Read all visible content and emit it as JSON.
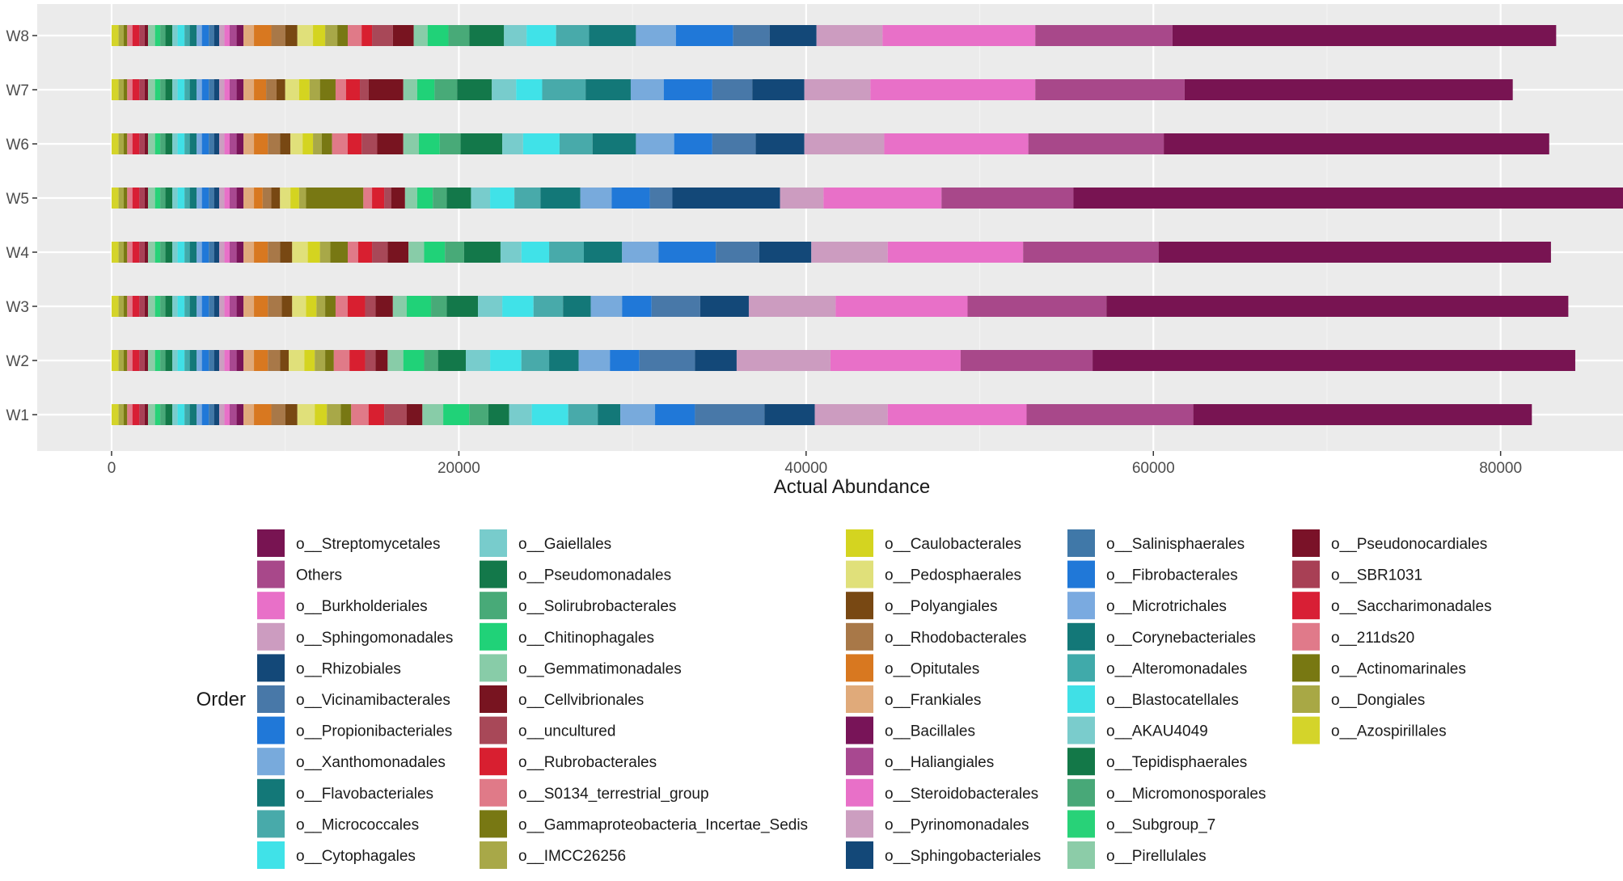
{
  "chart_data": {
    "type": "bar",
    "orientation": "horizontal",
    "stacked": true,
    "categories": [
      "W1",
      "W2",
      "W3",
      "W4",
      "W5",
      "W6",
      "W7",
      "W8"
    ],
    "xlabel": "Actual Abundance",
    "ylabel": "",
    "xlim": [
      0,
      85000
    ],
    "xticks": [
      0,
      20000,
      40000,
      60000,
      80000
    ],
    "grid": true,
    "legend": {
      "title": "Order",
      "placement": "bottom"
    },
    "series": [
      {
        "name": "o__Azospirillales",
        "color": "#d4d42a",
        "values": [
          400,
          400,
          400,
          400,
          400,
          400,
          400,
          400
        ]
      },
      {
        "name": "o__Dongiales",
        "color": "#a8a845",
        "values": [
          300,
          300,
          300,
          300,
          300,
          300,
          300,
          300
        ]
      },
      {
        "name": "o__Actinomarinales",
        "color": "#787812",
        "values": [
          200,
          200,
          200,
          200,
          200,
          200,
          200,
          200
        ]
      },
      {
        "name": "o__211ds20",
        "color": "#e07a8a",
        "values": [
          300,
          300,
          300,
          300,
          300,
          300,
          300,
          300
        ]
      },
      {
        "name": "o__Saccharimonadales",
        "color": "#d81f35",
        "values": [
          400,
          400,
          400,
          400,
          400,
          400,
          400,
          400
        ]
      },
      {
        "name": "o__SBR1031",
        "color": "#a84055",
        "values": [
          300,
          300,
          300,
          300,
          300,
          300,
          300,
          300
        ]
      },
      {
        "name": "o__Pseudonocardiales",
        "color": "#7a1228",
        "values": [
          200,
          200,
          200,
          200,
          200,
          200,
          200,
          200
        ]
      },
      {
        "name": "o__Pirellulales",
        "color": "#8ccca8",
        "values": [
          400,
          400,
          400,
          400,
          400,
          400,
          400,
          400
        ]
      },
      {
        "name": "o__Subgroup_7",
        "color": "#28d278",
        "values": [
          300,
          300,
          300,
          300,
          300,
          300,
          300,
          300
        ]
      },
      {
        "name": "o__Micromonosporales",
        "color": "#48a878",
        "values": [
          300,
          300,
          300,
          300,
          300,
          300,
          300,
          300
        ]
      },
      {
        "name": "o__Tepidisphaerales",
        "color": "#137848",
        "values": [
          400,
          400,
          400,
          400,
          400,
          400,
          400,
          400
        ]
      },
      {
        "name": "o__AKAU4049",
        "color": "#7acccc",
        "values": [
          300,
          300,
          300,
          300,
          300,
          300,
          300,
          300
        ]
      },
      {
        "name": "o__Blastocatellales",
        "color": "#40e0e6",
        "values": [
          400,
          400,
          400,
          400,
          400,
          400,
          400,
          400
        ]
      },
      {
        "name": "o__Alteromonadales",
        "color": "#40aaaa",
        "values": [
          300,
          300,
          300,
          300,
          300,
          300,
          300,
          300
        ]
      },
      {
        "name": "o__Corynebacteriales",
        "color": "#137878",
        "values": [
          400,
          400,
          400,
          400,
          400,
          400,
          400,
          400
        ]
      },
      {
        "name": "o__Microtrichales",
        "color": "#7aaae0",
        "values": [
          300,
          300,
          300,
          300,
          300,
          300,
          300,
          300
        ]
      },
      {
        "name": "o__Fibrobacterales",
        "color": "#2078d8",
        "values": [
          400,
          400,
          400,
          400,
          400,
          400,
          400,
          400
        ]
      },
      {
        "name": "o__Salinisphaerales",
        "color": "#4078a8",
        "values": [
          300,
          300,
          300,
          300,
          300,
          300,
          300,
          300
        ]
      },
      {
        "name": "o__Sphingobacteriales",
        "color": "#134878",
        "values": [
          300,
          300,
          300,
          300,
          300,
          300,
          300,
          300
        ]
      },
      {
        "name": "o__Pyrinomonadales",
        "color": "#cc9ec0",
        "values": [
          300,
          300,
          300,
          300,
          300,
          300,
          300,
          300
        ]
      },
      {
        "name": "o__Steroidobacterales",
        "color": "#e870c8",
        "values": [
          300,
          300,
          300,
          300,
          300,
          300,
          300,
          300
        ]
      },
      {
        "name": "o__Haliangiales",
        "color": "#a84890",
        "values": [
          400,
          400,
          400,
          400,
          400,
          400,
          400,
          400
        ]
      },
      {
        "name": "o__Bacillales",
        "color": "#781458",
        "values": [
          400,
          400,
          400,
          400,
          400,
          400,
          400,
          400
        ]
      },
      {
        "name": "o__Frankiales",
        "color": "#e0aa7a",
        "values": [
          600,
          600,
          600,
          600,
          600,
          600,
          600,
          600
        ]
      },
      {
        "name": "o__Opitutales",
        "color": "#d87820",
        "values": [
          1000,
          800,
          800,
          800,
          500,
          800,
          700,
          1000
        ]
      },
      {
        "name": "o__Rhodobacterales",
        "color": "#a87848",
        "values": [
          800,
          700,
          800,
          700,
          500,
          700,
          600,
          800
        ]
      },
      {
        "name": "o__Polyangiales",
        "color": "#784813",
        "values": [
          700,
          500,
          600,
          700,
          500,
          600,
          500,
          700
        ]
      },
      {
        "name": "o__Pedosphaerales",
        "color": "#e0e07a",
        "values": [
          1000,
          900,
          800,
          900,
          600,
          700,
          800,
          900
        ]
      },
      {
        "name": "o__Caulobacterales",
        "color": "#d4d420",
        "values": [
          700,
          600,
          600,
          700,
          500,
          600,
          600,
          700
        ]
      },
      {
        "name": "o__IMCC26256",
        "color": "#a8a848",
        "values": [
          800,
          600,
          500,
          600,
          400,
          500,
          600,
          700
        ]
      },
      {
        "name": "o__Gammaproteobacteria_Incertae_Sedis",
        "color": "#787813",
        "values": [
          600,
          500,
          600,
          1000,
          3300,
          600,
          900,
          600
        ]
      },
      {
        "name": "o__S0134_terrestrial_group",
        "color": "#e07a88",
        "values": [
          1000,
          900,
          700,
          600,
          500,
          900,
          600,
          800
        ]
      },
      {
        "name": "o__Rubrobacterales",
        "color": "#d81f30",
        "values": [
          900,
          900,
          1000,
          800,
          700,
          800,
          800,
          600
        ]
      },
      {
        "name": "o__uncultured",
        "color": "#a84858",
        "values": [
          1300,
          600,
          600,
          900,
          400,
          900,
          500,
          1200
        ]
      },
      {
        "name": "o__Cellvibrionales",
        "color": "#781420",
        "values": [
          900,
          700,
          1000,
          1200,
          800,
          1500,
          2000,
          1200
        ]
      },
      {
        "name": "o__Gemmatimonadales",
        "color": "#88cca8",
        "values": [
          1200,
          900,
          800,
          900,
          700,
          900,
          800,
          800
        ]
      },
      {
        "name": "o__Chitinophagales",
        "color": "#20d278",
        "values": [
          1500,
          1200,
          1400,
          1200,
          900,
          1200,
          1000,
          1200
        ]
      },
      {
        "name": "o__Solirubrobacterales",
        "color": "#48aa78",
        "values": [
          1100,
          800,
          900,
          1100,
          800,
          1200,
          1300,
          1200
        ]
      },
      {
        "name": "o__Pseudomonadales",
        "color": "#13784a",
        "values": [
          1200,
          1600,
          1800,
          2100,
          1400,
          2400,
          2000,
          2000
        ]
      },
      {
        "name": "o__Gaiellales",
        "color": "#78cccc",
        "values": [
          1300,
          1400,
          1400,
          1200,
          1100,
          1200,
          1400,
          1300
        ]
      },
      {
        "name": "o__Cytophagales",
        "color": "#40e2e8",
        "values": [
          2100,
          1800,
          1800,
          1600,
          1400,
          2100,
          1500,
          1700
        ]
      },
      {
        "name": "o__Micrococcales",
        "color": "#48aaaa",
        "values": [
          1700,
          1600,
          1700,
          2000,
          1500,
          1900,
          2500,
          1900
        ]
      },
      {
        "name": "o__Flavobacteriales",
        "color": "#137878",
        "values": [
          1300,
          1700,
          1600,
          2200,
          2300,
          2500,
          2600,
          2700
        ]
      },
      {
        "name": "o__Xanthomonadales",
        "color": "#78aadc",
        "values": [
          2000,
          1800,
          1800,
          2100,
          1800,
          2200,
          1900,
          2300
        ]
      },
      {
        "name": "o__Propionibacteriales",
        "color": "#2078d8",
        "values": [
          2300,
          1700,
          1700,
          3300,
          2200,
          2200,
          2800,
          3300
        ]
      },
      {
        "name": "o__Vicinamibacterales",
        "color": "#4878a8",
        "values": [
          4000,
          3200,
          2800,
          2500,
          1300,
          2500,
          2300,
          2100
        ]
      },
      {
        "name": "o__Rhizobiales",
        "color": "#134878",
        "values": [
          2900,
          2400,
          2800,
          3000,
          6200,
          2800,
          3000,
          2700
        ]
      },
      {
        "name": "o__Sphingomonadales",
        "color": "#cc9cc0",
        "values": [
          4200,
          5400,
          5000,
          4400,
          2500,
          4600,
          3800,
          3800
        ]
      },
      {
        "name": "o__Burkholderiales",
        "color": "#e870c8",
        "values": [
          8000,
          7500,
          7600,
          7800,
          6800,
          8300,
          9500,
          8800
        ]
      },
      {
        "name": "Others",
        "color": "#a8488a",
        "values": [
          9600,
          7600,
          8000,
          7800,
          7600,
          7800,
          8600,
          7900
        ]
      },
      {
        "name": "o__Streptomycetales",
        "color": "#781452",
        "values": [
          19500,
          27800,
          26600,
          22600,
          31800,
          22200,
          18900,
          22100
        ]
      }
    ],
    "legend_order": [
      "o__Streptomycetales",
      "Others",
      "o__Burkholderiales",
      "o__Sphingomonadales",
      "o__Rhizobiales",
      "o__Vicinamibacterales",
      "o__Propionibacteriales",
      "o__Xanthomonadales",
      "o__Flavobacteriales",
      "o__Micrococcales",
      "o__Cytophagales",
      "o__Gaiellales",
      "o__Pseudomonadales",
      "o__Solirubrobacterales",
      "o__Chitinophagales",
      "o__Gemmatimonadales",
      "o__Cellvibrionales",
      "o__uncultured",
      "o__Rubrobacterales",
      "o__S0134_terrestrial_group",
      "o__Gammaproteobacteria_Incertae_Sedis",
      "o__IMCC26256",
      "o__Caulobacterales",
      "o__Pedosphaerales",
      "o__Polyangiales",
      "o__Rhodobacterales",
      "o__Opitutales",
      "o__Frankiales",
      "o__Bacillales",
      "o__Haliangiales",
      "o__Steroidobacterales",
      "o__Pyrinomonadales",
      "o__Sphingobacteriales",
      "o__Salinisphaerales",
      "o__Fibrobacterales",
      "o__Microtrichales",
      "o__Corynebacteriales",
      "o__Alteromonadales",
      "o__Blastocatellales",
      "o__AKAU4049",
      "o__Tepidisphaerales",
      "o__Micromonosporales",
      "o__Subgroup_7",
      "o__Pirellulales",
      "o__Pseudonocardiales",
      "o__SBR1031",
      "o__Saccharimonadales",
      "o__211ds20",
      "o__Actinomarinales",
      "o__Dongiales",
      "o__Azospirillales"
    ]
  }
}
